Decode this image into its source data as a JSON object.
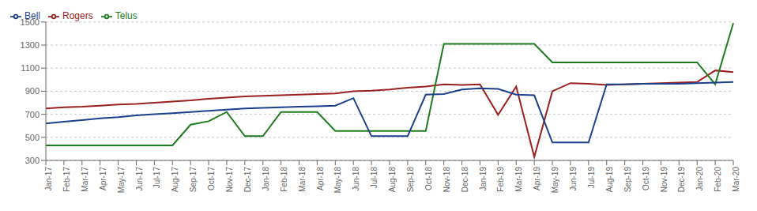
{
  "chart_data": {
    "type": "line",
    "categories": [
      "Jan-17",
      "Feb-17",
      "Mar-17",
      "Apr-17",
      "May-17",
      "Jun-17",
      "Jul-17",
      "Aug-17",
      "Sep-17",
      "Oct-17",
      "Nov-17",
      "Dec-17",
      "Jan-18",
      "Feb-18",
      "Mar-18",
      "Apr-18",
      "May-18",
      "Jun-18",
      "Jul-18",
      "Aug-18",
      "Sep-18",
      "Oct-18",
      "Nov-18",
      "Dec-18",
      "Jan-19",
      "Feb-19",
      "Mar-19",
      "Apr-19",
      "May-19",
      "Jun-19",
      "Jul-19",
      "Aug-19",
      "Sep-19",
      "Oct-19",
      "Nov-19",
      "Dec-19",
      "Jan-20",
      "Feb-20",
      "Mar-20"
    ],
    "series": [
      {
        "name": "Rogers",
        "color": "#9B2020",
        "values": [
          750,
          760,
          765,
          775,
          785,
          790,
          800,
          810,
          820,
          835,
          845,
          855,
          860,
          865,
          870,
          875,
          880,
          900,
          905,
          915,
          930,
          940,
          960,
          955,
          960,
          695,
          940,
          330,
          900,
          970,
          965,
          955,
          960,
          965,
          970,
          975,
          980,
          1080,
          1065
        ]
      },
      {
        "name": "Telus",
        "color": "#1E7B1E",
        "values": [
          430,
          430,
          430,
          430,
          430,
          430,
          430,
          430,
          610,
          640,
          720,
          510,
          510,
          720,
          720,
          720,
          555,
          555,
          555,
          555,
          555,
          555,
          1310,
          1310,
          1310,
          1310,
          1310,
          1310,
          1150,
          1150,
          1150,
          1150,
          1150,
          1150,
          1150,
          1150,
          1150,
          960,
          1490
        ]
      },
      {
        "name": "Bell",
        "color": "#1C3F8C",
        "values": [
          620,
          635,
          650,
          665,
          675,
          690,
          700,
          710,
          720,
          730,
          740,
          750,
          755,
          760,
          765,
          770,
          775,
          840,
          510,
          510,
          510,
          870,
          875,
          915,
          925,
          920,
          870,
          865,
          455,
          455,
          455,
          960,
          960,
          965,
          965,
          965,
          970,
          975,
          980
        ]
      }
    ],
    "ylim": [
      300,
      1500
    ],
    "yticks": [
      300,
      500,
      700,
      900,
      1100,
      1300,
      1500
    ],
    "grid": true,
    "legend": "upper left"
  }
}
